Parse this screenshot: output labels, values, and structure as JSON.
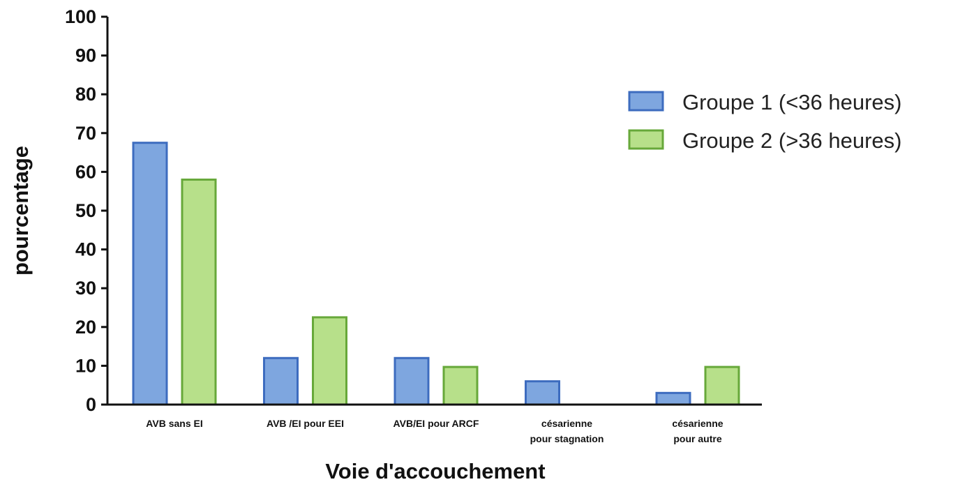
{
  "chart_data": {
    "type": "bar",
    "title": "",
    "xlabel": "Voie d'accouchement",
    "ylabel": "pourcentage",
    "ylim": [
      0,
      100
    ],
    "yticks": [
      0,
      10,
      20,
      30,
      40,
      50,
      60,
      70,
      80,
      90,
      100
    ],
    "categories": [
      [
        "AVB sans EI"
      ],
      [
        "AVB /EI pour EEI"
      ],
      [
        "AVB/EI pour ARCF"
      ],
      [
        "césarienne",
        "pour stagnation"
      ],
      [
        "césarienne",
        "pour autre"
      ]
    ],
    "series": [
      {
        "name": "Groupe 1 (<36 heures)",
        "values": [
          67.5,
          12,
          12,
          6,
          3
        ],
        "fill": "#7ea6df",
        "stroke": "#3d6cbf"
      },
      {
        "name": "Groupe 2 (>36 heures)",
        "values": [
          58,
          22.5,
          9.7,
          0,
          9.7
        ],
        "fill": "#b7e08a",
        "stroke": "#67a83a"
      }
    ],
    "legend": "right",
    "grid": false
  }
}
